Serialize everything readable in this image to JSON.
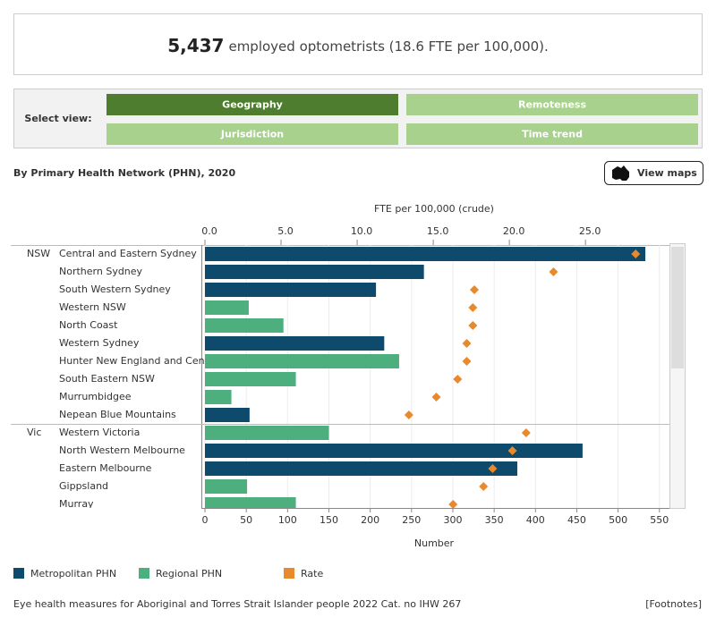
{
  "header": {
    "count": "5,437",
    "text": "employed optometrists (18.6 FTE per 100,000)."
  },
  "view_selector": {
    "label": "Select view:",
    "buttons": [
      "Geography",
      "Remoteness",
      "Jurisdiction",
      "Time trend"
    ],
    "active": 0
  },
  "view_maps": "View maps",
  "footer": {
    "source": "Eye health measures for Aboriginal and Torres Strait Islander people 2022 Cat. no IHW 267",
    "footnotes": "[Footnotes]"
  },
  "chart_data": {
    "type": "bar",
    "orientation": "horizontal",
    "title": "By Primary Health Network (PHN), 2020",
    "xlabel": "Number",
    "x2label": "FTE per 100,000 (crude)",
    "groups": [
      "NSW",
      null,
      null,
      null,
      null,
      null,
      null,
      null,
      null,
      null,
      "Vic",
      null,
      null,
      null,
      null
    ],
    "categories": [
      "Central and Eastern Sydney",
      "Northern Sydney",
      "South Western Sydney",
      "Western NSW",
      "North Coast",
      "Western Sydney",
      "Hunter New England and Cen..",
      "South Eastern NSW",
      "Murrumbidgee",
      "Nepean Blue Mountains",
      "Western Victoria",
      "North Western Melbourne",
      "Eastern Melbourne",
      "Gippsland",
      "Murray"
    ],
    "series": [
      {
        "name": "Metropolitan PHN",
        "color": "#0d4a6b",
        "values": [
          533,
          265,
          207,
          null,
          null,
          217,
          null,
          null,
          null,
          54,
          null,
          457,
          378,
          null,
          null
        ]
      },
      {
        "name": "Regional PHN",
        "color": "#4caf7d",
        "values": [
          null,
          null,
          null,
          53,
          95,
          null,
          235,
          110,
          32,
          null,
          150,
          null,
          null,
          51,
          110
        ]
      },
      {
        "name": "Rate",
        "color": "#e8892e",
        "axis": "x2",
        "values": [
          28.3,
          22.9,
          17.7,
          17.6,
          17.6,
          17.2,
          17.2,
          16.6,
          15.2,
          13.4,
          21.1,
          20.2,
          18.9,
          18.3,
          16.3
        ]
      }
    ],
    "xlim": [
      0,
      560
    ],
    "xticks": [
      0,
      50,
      100,
      150,
      200,
      250,
      300,
      350,
      400,
      450,
      500,
      550
    ],
    "x2lim": [
      0,
      30.4
    ],
    "x2ticks": [
      {
        "value": 0,
        "label": "0.0"
      },
      {
        "value": 5,
        "label": "5.0"
      },
      {
        "value": 10,
        "label": "10.0"
      },
      {
        "value": 15,
        "label": "15.0"
      },
      {
        "value": 20,
        "label": "20.0"
      },
      {
        "value": 25,
        "label": "25.0"
      }
    ],
    "grid": true,
    "legend": "bottom"
  }
}
